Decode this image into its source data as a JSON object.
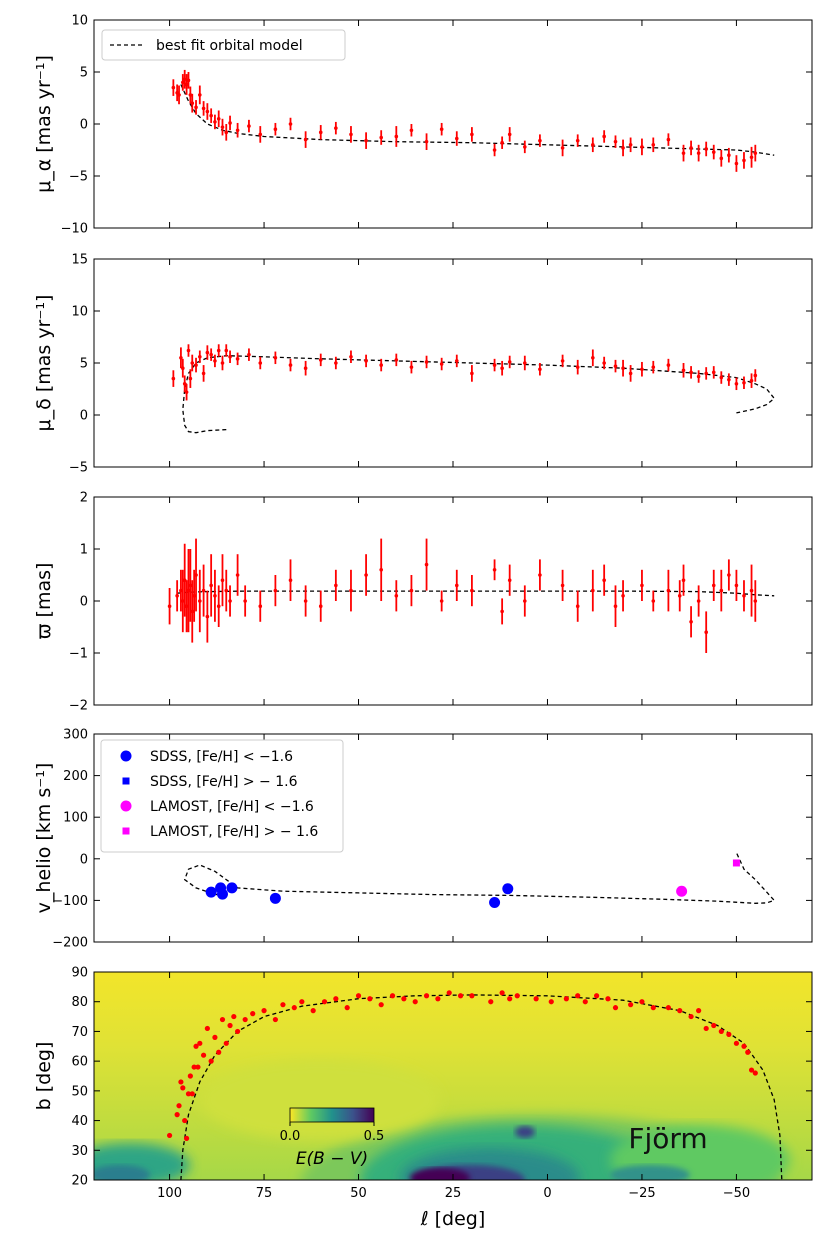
{
  "figure": {
    "xlabel": "ℓ [deg]",
    "x_ticks": [
      100,
      75,
      50,
      25,
      0,
      -25,
      -50
    ],
    "xlim": [
      120,
      -70
    ],
    "stream_label": "Fjörm"
  },
  "chart_data": [
    {
      "type": "scatter",
      "panel": "pm-ra",
      "ylabel": "μ_α [mas yr⁻¹]",
      "ylim": [
        -10,
        10
      ],
      "y_ticks": [
        -10,
        -5,
        0,
        5,
        10
      ],
      "legend": {
        "placement": "top-left",
        "entries": [
          "best fit orbital model"
        ]
      },
      "model": {
        "name": "best fit orbital model",
        "x": [
          97,
          95,
          93,
          90,
          86,
          82,
          75,
          60,
          40,
          20,
          0,
          -20,
          -40,
          -50,
          -55,
          -60
        ],
        "y": [
          3.8,
          2.2,
          1.0,
          0.0,
          -0.6,
          -0.9,
          -1.2,
          -1.5,
          -1.7,
          -1.8,
          -2.0,
          -2.2,
          -2.4,
          -2.5,
          -2.7,
          -3.0
        ]
      },
      "series": [
        {
          "color": "#ff0000",
          "x": [
            99,
            98,
            97.5,
            96.5,
            96,
            95.5,
            95,
            94.5,
            94,
            93,
            92,
            91,
            90,
            89,
            88,
            87,
            86,
            85,
            84,
            82,
            79,
            76,
            72,
            68,
            64,
            60,
            56,
            52,
            48,
            44,
            40,
            36,
            32,
            28,
            24,
            20,
            14,
            12,
            10,
            6,
            2,
            -4,
            -8,
            -12,
            -15,
            -18,
            -20,
            -22,
            -25,
            -28,
            -32,
            -36,
            -38,
            -40,
            -42,
            -44,
            -46,
            -48,
            -50,
            -52,
            -54,
            -55
          ],
          "y": [
            3.5,
            3.0,
            2.8,
            4.0,
            4.3,
            3.8,
            4.2,
            2.8,
            2.0,
            1.6,
            2.8,
            1.5,
            1.2,
            0.8,
            0.2,
            0.5,
            -0.3,
            -0.8,
            0.1,
            -0.6,
            -0.2,
            -1.0,
            -0.5,
            0.0,
            -1.5,
            -0.8,
            -0.4,
            -1.0,
            -1.6,
            -1.3,
            -1.2,
            -0.6,
            -1.7,
            -0.5,
            -1.4,
            -1.0,
            -2.5,
            -1.8,
            -1.0,
            -2.2,
            -1.6,
            -2.3,
            -1.6,
            -2.0,
            -1.2,
            -1.7,
            -2.3,
            -2.0,
            -2.2,
            -2.0,
            -1.5,
            -2.8,
            -2.3,
            -2.8,
            -2.4,
            -2.7,
            -3.3,
            -3.0,
            -3.8,
            -3.5,
            -3.2,
            -2.8
          ],
          "err": [
            0.8,
            0.8,
            0.9,
            0.8,
            0.9,
            1.0,
            0.8,
            0.8,
            0.9,
            0.7,
            0.9,
            0.7,
            0.8,
            0.7,
            0.7,
            0.8,
            0.8,
            0.8,
            0.7,
            0.7,
            0.6,
            0.8,
            0.6,
            0.6,
            0.8,
            0.7,
            0.6,
            0.8,
            0.8,
            0.7,
            1.0,
            0.6,
            0.8,
            0.6,
            0.7,
            0.7,
            0.6,
            0.6,
            0.7,
            0.6,
            0.6,
            0.8,
            0.6,
            0.7,
            0.6,
            0.6,
            0.8,
            0.7,
            0.8,
            0.7,
            0.6,
            0.8,
            0.7,
            0.8,
            0.7,
            0.7,
            0.8,
            0.7,
            0.8,
            0.8,
            1.0,
            0.8
          ]
        }
      ]
    },
    {
      "type": "scatter",
      "panel": "pm-dec",
      "ylabel": "μ_δ [mas yr⁻¹]",
      "ylim": [
        -5,
        15
      ],
      "y_ticks": [
        -5,
        0,
        5,
        10,
        15
      ],
      "model": {
        "name": "best fit orbital model",
        "x": [
          85,
          90,
          93,
          95,
          96,
          96.5,
          96,
          95,
          93,
          90,
          85,
          75,
          60,
          40,
          20,
          0,
          -20,
          -40,
          -50,
          -55,
          -58,
          -60,
          -58,
          -55,
          -50
        ],
        "y": [
          -1.4,
          -1.5,
          -1.7,
          -1.6,
          -1.0,
          0.5,
          2.5,
          4.0,
          5.0,
          5.5,
          5.7,
          5.6,
          5.4,
          5.2,
          5.0,
          4.8,
          4.5,
          4.0,
          3.6,
          3.0,
          2.5,
          1.6,
          1.0,
          0.6,
          0.2
        ]
      },
      "series": [
        {
          "color": "#ff0000",
          "x": [
            99,
            97,
            96.5,
            96,
            95.5,
            95,
            94.5,
            94,
            93,
            92,
            91,
            90,
            89,
            88,
            87,
            86,
            85,
            84,
            82,
            79,
            76,
            72,
            68,
            64,
            60,
            56,
            52,
            48,
            44,
            40,
            36,
            32,
            28,
            24,
            20,
            14,
            12,
            10,
            6,
            2,
            -4,
            -8,
            -12,
            -15,
            -18,
            -20,
            -22,
            -25,
            -28,
            -32,
            -36,
            -38,
            -40,
            -42,
            -44,
            -46,
            -48,
            -50,
            -52,
            -54,
            -55
          ],
          "y": [
            3.5,
            5.5,
            4.5,
            3.0,
            2.2,
            6.2,
            3.5,
            5.0,
            4.8,
            5.6,
            4.0,
            6.0,
            5.8,
            5.2,
            6.2,
            5.0,
            6.2,
            5.6,
            5.4,
            5.8,
            5.0,
            5.5,
            4.8,
            4.5,
            5.3,
            5.0,
            5.6,
            5.2,
            4.8,
            5.3,
            4.6,
            5.1,
            4.9,
            5.2,
            4.0,
            4.8,
            4.5,
            5.1,
            5.0,
            4.4,
            5.2,
            4.6,
            5.5,
            5.0,
            4.7,
            4.5,
            4.0,
            4.4,
            4.6,
            4.8,
            4.3,
            4.1,
            3.7,
            4.0,
            4.1,
            3.6,
            3.4,
            3.0,
            3.1,
            3.3,
            3.8
          ],
          "err": [
            0.8,
            1.0,
            0.9,
            0.8,
            0.8,
            0.6,
            0.9,
            0.8,
            0.7,
            0.6,
            0.8,
            0.7,
            0.6,
            0.6,
            0.6,
            0.7,
            0.6,
            0.6,
            0.6,
            0.6,
            0.6,
            0.6,
            0.6,
            0.7,
            0.6,
            0.6,
            0.6,
            0.6,
            0.6,
            0.6,
            0.6,
            0.6,
            0.6,
            0.6,
            0.8,
            0.6,
            0.7,
            0.6,
            0.7,
            0.6,
            0.6,
            0.7,
            0.8,
            0.6,
            0.6,
            0.8,
            0.8,
            0.7,
            0.6,
            0.6,
            0.7,
            0.6,
            0.6,
            0.6,
            0.6,
            0.6,
            0.6,
            0.6,
            0.6,
            0.7,
            0.6
          ]
        }
      ]
    },
    {
      "type": "scatter",
      "panel": "parallax",
      "ylabel": "ϖ [mas]",
      "ylim": [
        -2,
        2
      ],
      "y_ticks": [
        -2,
        -1,
        0,
        1,
        2
      ],
      "model": {
        "name": "best fit orbital model",
        "x": [
          98,
          95,
          90,
          80,
          60,
          40,
          20,
          0,
          -20,
          -40,
          -50,
          -55,
          -60
        ],
        "y": [
          0.15,
          0.17,
          0.18,
          0.19,
          0.19,
          0.19,
          0.19,
          0.19,
          0.19,
          0.18,
          0.15,
          0.12,
          0.1
        ]
      },
      "series": [
        {
          "color": "#ff0000",
          "x": [
            100,
            98,
            97,
            96.5,
            96,
            95.5,
            95,
            94.5,
            94,
            93.5,
            93,
            92,
            91,
            90,
            89,
            88,
            87,
            86,
            85,
            84,
            82,
            80,
            76,
            72,
            68,
            64,
            60,
            56,
            52,
            48,
            44,
            40,
            36,
            32,
            28,
            24,
            20,
            14,
            12,
            10,
            6,
            2,
            -4,
            -8,
            -12,
            -15,
            -18,
            -20,
            -25,
            -28,
            -32,
            -35,
            -36,
            -38,
            -40,
            -42,
            -44,
            -46,
            -48,
            -50,
            -52,
            -54,
            -55
          ],
          "y": [
            -0.1,
            0.1,
            0.2,
            0.0,
            0.4,
            -0.1,
            0.2,
            0.3,
            -0.2,
            0.1,
            0.5,
            0.0,
            0.2,
            -0.3,
            0.3,
            0.1,
            -0.1,
            0.4,
            0.2,
            0.0,
            0.5,
            0.0,
            -0.1,
            0.2,
            0.4,
            0.0,
            -0.1,
            0.3,
            0.2,
            0.5,
            0.6,
            0.1,
            0.2,
            0.7,
            0.0,
            0.3,
            0.2,
            0.6,
            -0.2,
            0.4,
            0.0,
            0.5,
            0.3,
            -0.1,
            0.2,
            0.4,
            -0.1,
            0.1,
            0.3,
            0.0,
            0.2,
            0.1,
            0.4,
            -0.4,
            0.0,
            -0.6,
            0.3,
            0.2,
            0.5,
            0.3,
            0.1,
            0.2,
            0.0
          ],
          "err": [
            0.35,
            0.3,
            0.4,
            0.6,
            0.7,
            0.5,
            0.8,
            0.7,
            0.6,
            0.5,
            0.7,
            0.6,
            0.5,
            0.5,
            0.6,
            0.5,
            0.4,
            0.5,
            0.4,
            0.3,
            0.4,
            0.3,
            0.3,
            0.3,
            0.4,
            0.3,
            0.3,
            0.3,
            0.4,
            0.4,
            0.6,
            0.3,
            0.3,
            0.5,
            0.2,
            0.3,
            0.3,
            0.2,
            0.25,
            0.3,
            0.3,
            0.3,
            0.3,
            0.3,
            0.4,
            0.3,
            0.4,
            0.3,
            0.3,
            0.2,
            0.4,
            0.3,
            0.3,
            0.3,
            0.3,
            0.4,
            0.3,
            0.4,
            0.3,
            0.3,
            0.3,
            0.5,
            0.4
          ]
        }
      ]
    },
    {
      "type": "scatter",
      "panel": "radial-velocity",
      "ylabel": "v_helio [km s⁻¹]",
      "ylim": [
        -200,
        300
      ],
      "y_ticks": [
        -200,
        -100,
        0,
        100,
        200,
        300
      ],
      "legend": {
        "placement": "top-left",
        "entries": [
          "SDSS, [Fe/H] < −1.6",
          "SDSS, [Fe/H] > − 1.6",
          "LAMOST, [Fe/H] < −1.6",
          "LAMOST, [Fe/H] > − 1.6"
        ]
      },
      "model": {
        "name": "best fit orbital model",
        "x": [
          85,
          88,
          93,
          96,
          95,
          92,
          88,
          82,
          70,
          50,
          30,
          10,
          -10,
          -30,
          -45,
          -55,
          -58,
          -60,
          -58,
          -55,
          -52,
          -50
        ],
        "y": [
          -90,
          -85,
          -70,
          -50,
          -25,
          -15,
          -30,
          -70,
          -78,
          -82,
          -86,
          -88,
          -92,
          -97,
          -102,
          -107,
          -106,
          -100,
          -80,
          -50,
          -25,
          15
        ]
      },
      "series": [
        {
          "name": "SDSS, [Fe/H] < −1.6",
          "marker": "circle",
          "color": "#0000ff",
          "x": [
            89,
            86.5,
            86,
            83.5,
            72,
            14,
            10.5
          ],
          "y": [
            -80,
            -70,
            -85,
            -70,
            -95,
            -105,
            -72
          ]
        },
        {
          "name": "SDSS, [Fe/H] > − 1.6",
          "marker": "square",
          "color": "#0000ff",
          "x": [],
          "y": []
        },
        {
          "name": "LAMOST, [Fe/H] < −1.6",
          "marker": "circle",
          "color": "#ff00ff",
          "x": [
            -35.5
          ],
          "y": [
            -78
          ]
        },
        {
          "name": "LAMOST, [Fe/H] > − 1.6",
          "marker": "square",
          "color": "#ff00ff",
          "x": [
            -50
          ],
          "y": [
            -10
          ]
        }
      ]
    },
    {
      "type": "scatter",
      "panel": "sky",
      "ylabel": "b [deg]",
      "ylim": [
        20,
        90
      ],
      "y_ticks": [
        20,
        30,
        40,
        50,
        60,
        70,
        80,
        90
      ],
      "background": "E(B−V) dust map",
      "colorbar": {
        "label": "E(B − V)",
        "ticks": [
          0.0,
          0.5
        ],
        "colors": [
          "#fde725",
          "#5ec962",
          "#21918c",
          "#3b528b",
          "#440154"
        ]
      },
      "model": {
        "name": "best fit orbital model",
        "x": [
          97,
          96.5,
          95,
          92,
          88,
          82,
          75,
          65,
          50,
          35,
          20,
          0,
          -20,
          -35,
          -45,
          -52,
          -57,
          -60,
          -61.5,
          -62
        ],
        "y": [
          20,
          30,
          42,
          53,
          62,
          70,
          75,
          78.5,
          81,
          82,
          82.3,
          82,
          80.5,
          77,
          72,
          66,
          57,
          47,
          35,
          20
        ]
      },
      "series": [
        {
          "color": "#ff0000",
          "x": [
            100,
            98,
            97.5,
            97,
            96.5,
            96,
            95.5,
            95,
            94.5,
            94,
            93.5,
            93,
            92.5,
            92,
            91,
            90,
            89,
            88,
            87,
            86,
            85,
            84,
            83,
            82,
            80,
            78,
            75,
            72,
            70,
            67,
            65,
            62,
            59,
            56,
            53,
            50,
            47,
            44,
            41,
            38,
            35,
            32,
            29,
            26,
            23,
            20,
            15,
            12,
            10,
            8,
            3,
            -1,
            -5,
            -8,
            -10,
            -13,
            -16,
            -18,
            -22,
            -25,
            -28,
            -32,
            -35,
            -38,
            -40,
            -42,
            -44,
            -46,
            -48,
            -50,
            -52,
            -53,
            -54,
            -55
          ],
          "y": [
            35,
            42,
            45,
            53,
            51,
            40,
            34,
            49,
            55,
            49,
            58,
            65,
            58,
            66,
            62,
            71,
            60,
            68,
            63,
            74,
            66,
            72,
            75,
            70,
            74,
            76,
            77,
            74,
            79,
            78,
            80,
            77,
            80,
            81,
            78,
            82,
            81,
            79,
            82,
            81,
            80,
            82,
            81,
            83,
            82,
            82,
            80,
            83,
            81,
            82,
            81,
            80,
            81,
            82,
            80,
            82,
            81,
            78,
            79,
            80,
            78,
            78,
            77,
            75,
            77,
            71,
            72,
            70,
            69,
            66,
            65,
            63,
            57,
            56
          ],
          "err": []
        }
      ]
    }
  ]
}
